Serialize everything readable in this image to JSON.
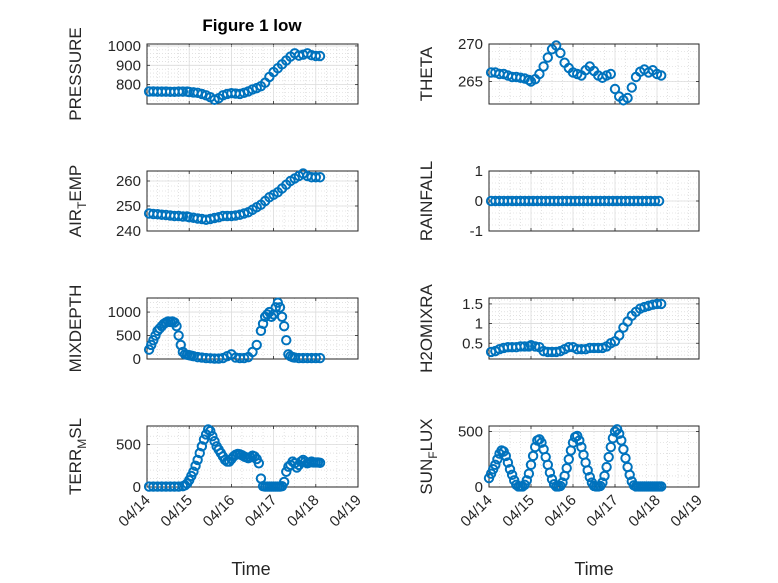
{
  "figure": {
    "title": "Figure 1 low",
    "xlabel": "Time",
    "marker_color": "#0072BD",
    "grid": "on",
    "x_ticks": [
      "04/14",
      "04/15",
      "04/16",
      "04/17",
      "04/18",
      "04/19"
    ]
  },
  "chart_data": [
    {
      "type": "scatter",
      "name": "PRESSURE",
      "ylabel": "PRESSURE",
      "ylim": [
        700,
        1010
      ],
      "yticks": [
        800,
        900,
        1000
      ],
      "yticklabels": [
        "800",
        "900",
        "1000"
      ],
      "x": [
        0.05,
        0.15,
        0.25,
        0.35,
        0.45,
        0.55,
        0.65,
        0.75,
        0.85,
        0.95,
        1.0,
        1.1,
        1.2,
        1.3,
        1.4,
        1.5,
        1.6,
        1.7,
        1.8,
        1.9,
        2.0,
        2.1,
        2.2,
        2.3,
        2.4,
        2.5,
        2.6,
        2.7,
        2.8,
        2.9,
        3.0,
        3.1,
        3.2,
        3.3,
        3.4,
        3.5,
        3.6,
        3.7,
        3.8,
        3.9,
        4.0,
        4.1
      ],
      "y": [
        765,
        765,
        764,
        764,
        764,
        763,
        763,
        764,
        764,
        764,
        762,
        760,
        758,
        752,
        745,
        735,
        722,
        730,
        745,
        752,
        756,
        754,
        752,
        758,
        765,
        775,
        782,
        792,
        810,
        840,
        865,
        885,
        905,
        925,
        945,
        962,
        950,
        955,
        962,
        952,
        948,
        948
      ]
    },
    {
      "type": "scatter",
      "name": "THETA",
      "ylabel": "THETA",
      "ylim": [
        262,
        270
      ],
      "yticks": [
        265,
        270
      ],
      "yticklabels": [
        "265",
        "270"
      ],
      "x": [
        0.05,
        0.15,
        0.25,
        0.35,
        0.45,
        0.55,
        0.65,
        0.75,
        0.85,
        0.95,
        1.0,
        1.1,
        1.2,
        1.3,
        1.4,
        1.5,
        1.6,
        1.7,
        1.8,
        1.9,
        2.0,
        2.1,
        2.2,
        2.3,
        2.4,
        2.5,
        2.6,
        2.7,
        2.8,
        2.9,
        3.0,
        3.1,
        3.2,
        3.3,
        3.4,
        3.5,
        3.6,
        3.7,
        3.8,
        3.9,
        4.0,
        4.1
      ],
      "y": [
        266.2,
        266.2,
        266.0,
        266.0,
        265.8,
        265.6,
        265.6,
        265.5,
        265.4,
        265.2,
        265.0,
        265.3,
        266.0,
        267.0,
        268.2,
        269.3,
        269.8,
        268.8,
        267.5,
        266.8,
        266.2,
        266.0,
        265.8,
        266.5,
        267.0,
        266.4,
        265.8,
        265.5,
        265.8,
        266.0,
        264.0,
        263.0,
        262.5,
        262.8,
        264.2,
        265.6,
        266.3,
        266.6,
        266.2,
        266.5,
        266.0,
        265.8
      ]
    },
    {
      "type": "scatter",
      "name": "AIR_TEMP",
      "ylabel": "AIR_TEMP",
      "ylim": [
        240,
        264
      ],
      "yticks": [
        240,
        250,
        260
      ],
      "yticklabels": [
        "240",
        "250",
        "260"
      ],
      "x": [
        0.05,
        0.15,
        0.25,
        0.35,
        0.45,
        0.55,
        0.65,
        0.75,
        0.85,
        0.95,
        1.0,
        1.1,
        1.2,
        1.3,
        1.4,
        1.5,
        1.6,
        1.7,
        1.8,
        1.9,
        2.0,
        2.1,
        2.2,
        2.3,
        2.4,
        2.5,
        2.6,
        2.7,
        2.8,
        2.9,
        3.0,
        3.1,
        3.2,
        3.3,
        3.4,
        3.5,
        3.6,
        3.7,
        3.8,
        3.9,
        4.0,
        4.1
      ],
      "y": [
        247,
        246.8,
        246.7,
        246.5,
        246.4,
        246.2,
        246.0,
        246.0,
        245.8,
        245.8,
        245.5,
        245.3,
        245.0,
        244.8,
        244.5,
        244.8,
        245.2,
        245.5,
        246.0,
        246.0,
        246.0,
        246.2,
        246.5,
        247.0,
        247.5,
        248.5,
        249.5,
        250.5,
        252.0,
        253.5,
        254.5,
        255.5,
        257.0,
        258.5,
        260.0,
        261.0,
        262.0,
        263.0,
        262.0,
        261.5,
        261.5,
        261.5
      ]
    },
    {
      "type": "scatter",
      "name": "RAINFALL",
      "ylabel": "RAINFALL",
      "ylim": [
        -1,
        1
      ],
      "yticks": [
        -1,
        0,
        1
      ],
      "yticklabels": [
        "-1",
        "0",
        "1"
      ],
      "x": [
        0.05,
        0.15,
        0.25,
        0.35,
        0.45,
        0.55,
        0.65,
        0.75,
        0.85,
        0.95,
        1.05,
        1.15,
        1.25,
        1.35,
        1.45,
        1.55,
        1.65,
        1.75,
        1.85,
        1.95,
        2.05,
        2.15,
        2.25,
        2.35,
        2.45,
        2.55,
        2.65,
        2.75,
        2.85,
        2.95,
        3.05,
        3.15,
        3.25,
        3.35,
        3.45,
        3.55,
        3.65,
        3.75,
        3.85,
        3.95,
        4.05
      ],
      "y": [
        0,
        0,
        0,
        0,
        0,
        0,
        0,
        0,
        0,
        0,
        0,
        0,
        0,
        0,
        0,
        0,
        0,
        0,
        0,
        0,
        0,
        0,
        0,
        0,
        0,
        0,
        0,
        0,
        0,
        0,
        0,
        0,
        0,
        0,
        0,
        0,
        0,
        0,
        0,
        0,
        0
      ]
    },
    {
      "type": "scatter",
      "name": "MIXDEPTH",
      "ylabel": "MIXDEPTH",
      "ylim": [
        0,
        1300
      ],
      "yticks": [
        0,
        500,
        1000
      ],
      "yticklabels": [
        "0",
        "500",
        "1000"
      ],
      "x": [
        0.05,
        0.1,
        0.15,
        0.2,
        0.25,
        0.3,
        0.35,
        0.4,
        0.45,
        0.5,
        0.55,
        0.6,
        0.65,
        0.7,
        0.75,
        0.8,
        0.85,
        0.9,
        0.95,
        1.0,
        1.05,
        1.1,
        1.2,
        1.3,
        1.4,
        1.5,
        1.6,
        1.7,
        1.8,
        1.9,
        2.0,
        2.1,
        2.2,
        2.3,
        2.4,
        2.5,
        2.6,
        2.7,
        2.75,
        2.8,
        2.85,
        2.9,
        2.95,
        3.0,
        3.05,
        3.1,
        3.15,
        3.2,
        3.25,
        3.3,
        3.35,
        3.4,
        3.45,
        3.5,
        3.6,
        3.7,
        3.8,
        3.9,
        4.0,
        4.1
      ],
      "y": [
        200,
        300,
        400,
        500,
        600,
        650,
        700,
        750,
        780,
        800,
        790,
        800,
        780,
        700,
        500,
        300,
        150,
        100,
        90,
        80,
        70,
        60,
        40,
        30,
        20,
        15,
        10,
        10,
        20,
        60,
        100,
        30,
        20,
        20,
        40,
        150,
        300,
        600,
        750,
        900,
        950,
        1000,
        900,
        950,
        1100,
        1200,
        1100,
        900,
        700,
        400,
        100,
        60,
        40,
        30,
        20,
        20,
        20,
        20,
        20,
        20
      ]
    },
    {
      "type": "scatter",
      "name": "H2OMIXRA",
      "ylabel": "H2OMIXRA",
      "ylim": [
        0.1,
        1.65
      ],
      "yticks": [
        0.5,
        1,
        1.5
      ],
      "yticklabels": [
        "0.5",
        "1",
        "1.5"
      ],
      "x": [
        0.05,
        0.15,
        0.25,
        0.35,
        0.45,
        0.55,
        0.65,
        0.75,
        0.85,
        0.95,
        1.0,
        1.1,
        1.2,
        1.3,
        1.4,
        1.5,
        1.6,
        1.7,
        1.8,
        1.9,
        2.0,
        2.1,
        2.2,
        2.3,
        2.4,
        2.5,
        2.6,
        2.7,
        2.8,
        2.9,
        3.0,
        3.1,
        3.2,
        3.3,
        3.4,
        3.5,
        3.6,
        3.7,
        3.8,
        3.9,
        4.0,
        4.1
      ],
      "y": [
        0.28,
        0.3,
        0.35,
        0.38,
        0.4,
        0.4,
        0.4,
        0.42,
        0.42,
        0.42,
        0.45,
        0.42,
        0.4,
        0.3,
        0.28,
        0.28,
        0.28,
        0.3,
        0.35,
        0.4,
        0.4,
        0.35,
        0.35,
        0.35,
        0.38,
        0.38,
        0.38,
        0.38,
        0.42,
        0.5,
        0.55,
        0.7,
        0.9,
        1.05,
        1.2,
        1.3,
        1.38,
        1.42,
        1.45,
        1.48,
        1.5,
        1.5
      ]
    },
    {
      "type": "scatter",
      "name": "TERR_MSL",
      "ylabel": "TERR_MSL",
      "ylim": [
        0,
        720
      ],
      "yticks": [
        0,
        500
      ],
      "yticklabels": [
        "0",
        "500"
      ],
      "x": [
        0.05,
        0.15,
        0.25,
        0.35,
        0.45,
        0.55,
        0.65,
        0.75,
        0.85,
        0.9,
        0.95,
        1.0,
        1.05,
        1.1,
        1.15,
        1.2,
        1.25,
        1.3,
        1.35,
        1.4,
        1.45,
        1.5,
        1.55,
        1.6,
        1.65,
        1.7,
        1.75,
        1.8,
        1.85,
        1.9,
        1.95,
        2.0,
        2.05,
        2.1,
        2.15,
        2.2,
        2.25,
        2.3,
        2.35,
        2.4,
        2.45,
        2.5,
        2.55,
        2.6,
        2.65,
        2.7,
        2.75,
        2.8,
        2.85,
        2.9,
        2.95,
        3.0,
        3.05,
        3.1,
        3.15,
        3.2,
        3.25,
        3.3,
        3.35,
        3.4,
        3.45,
        3.5,
        3.55,
        3.6,
        3.65,
        3.7,
        3.75,
        3.8,
        3.85,
        3.9,
        3.95,
        4.0,
        4.05,
        4.1
      ],
      "y": [
        5,
        5,
        5,
        5,
        5,
        5,
        5,
        5,
        10,
        20,
        40,
        80,
        130,
        180,
        250,
        320,
        400,
        480,
        560,
        620,
        680,
        660,
        600,
        540,
        480,
        440,
        400,
        360,
        320,
        300,
        300,
        330,
        360,
        380,
        390,
        385,
        375,
        360,
        350,
        340,
        350,
        370,
        360,
        330,
        280,
        100,
        10,
        5,
        5,
        5,
        5,
        5,
        5,
        5,
        5,
        10,
        60,
        180,
        240,
        260,
        300,
        280,
        230,
        260,
        300,
        320,
        300,
        280,
        290,
        300,
        290,
        290,
        290,
        285
      ]
    },
    {
      "type": "scatter",
      "name": "SUN_FLUX",
      "ylabel": "SUN_FLUX",
      "ylim": [
        0,
        550
      ],
      "yticks": [
        0,
        500
      ],
      "yticklabels": [
        "0",
        "500"
      ],
      "x": [
        0.0,
        0.05,
        0.1,
        0.15,
        0.2,
        0.25,
        0.3,
        0.35,
        0.4,
        0.45,
        0.5,
        0.55,
        0.6,
        0.65,
        0.7,
        0.75,
        0.8,
        0.85,
        0.9,
        0.95,
        1.0,
        1.05,
        1.1,
        1.15,
        1.2,
        1.25,
        1.3,
        1.35,
        1.4,
        1.45,
        1.5,
        1.55,
        1.6,
        1.65,
        1.7,
        1.75,
        1.8,
        1.85,
        1.9,
        1.95,
        2.0,
        2.05,
        2.1,
        2.15,
        2.2,
        2.25,
        2.3,
        2.35,
        2.4,
        2.45,
        2.5,
        2.55,
        2.6,
        2.65,
        2.7,
        2.75,
        2.8,
        2.85,
        2.9,
        2.95,
        3.0,
        3.05,
        3.1,
        3.15,
        3.2,
        3.25,
        3.3,
        3.35,
        3.4,
        3.45,
        3.5,
        3.55,
        3.6,
        3.65,
        3.7,
        3.75,
        3.8,
        3.85,
        3.9,
        3.95,
        4.0,
        4.05,
        4.1
      ],
      "y": [
        80,
        120,
        160,
        200,
        250,
        300,
        330,
        320,
        280,
        220,
        160,
        110,
        60,
        20,
        5,
        5,
        5,
        20,
        60,
        120,
        200,
        280,
        360,
        420,
        430,
        400,
        340,
        270,
        200,
        130,
        70,
        25,
        5,
        5,
        10,
        40,
        100,
        170,
        250,
        330,
        400,
        450,
        460,
        420,
        360,
        290,
        220,
        150,
        90,
        40,
        10,
        5,
        5,
        10,
        40,
        100,
        180,
        270,
        360,
        440,
        500,
        520,
        480,
        420,
        340,
        260,
        180,
        110,
        50,
        15,
        5,
        5,
        5,
        5,
        5,
        5,
        5,
        5,
        5,
        5,
        5,
        5,
        5
      ]
    }
  ]
}
